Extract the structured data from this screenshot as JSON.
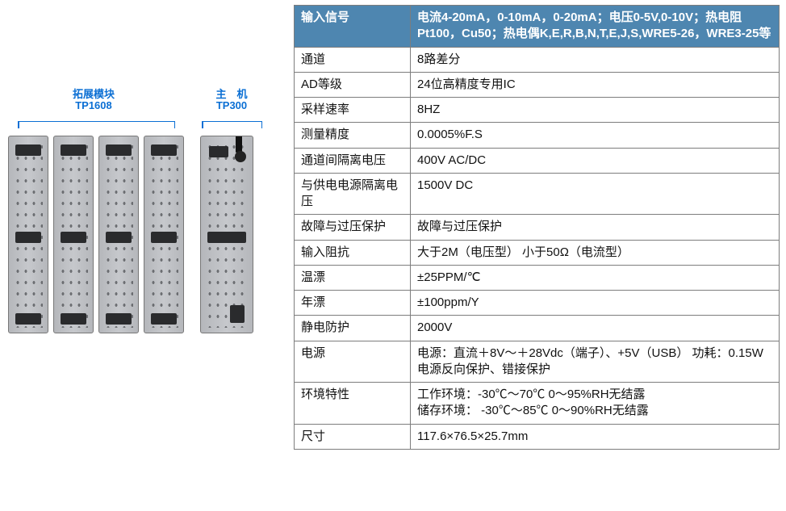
{
  "diagram": {
    "callouts": [
      {
        "top": "拓展模块",
        "bottom": "TP1608"
      },
      {
        "top": "主　机",
        "bottom": "TP300"
      }
    ],
    "accent_color": "#0b6fd4"
  },
  "spec_table": {
    "header_bg": "#4e86b0",
    "header_fg": "#ffffff",
    "border_color": "#7d7d7d",
    "header_row": {
      "key": "输入信号",
      "value": "电流4-20mA，0-10mA，0-20mA；电压0-5V,0-10V；热电阻Pt100，Cu50；热电偶K,E,R,B,N,T,E,J,S,WRE5-26，WRE3-25等"
    },
    "rows": [
      {
        "k": "通道",
        "v": " 8路差分"
      },
      {
        "k": "AD等级",
        "v": "24位高精度专用IC"
      },
      {
        "k": "采样速率",
        "v": "8HZ"
      },
      {
        "k": "测量精度",
        "v": "0.0005%F.S"
      },
      {
        "k": "通道间隔离电压",
        "v": "400V AC/DC"
      },
      {
        "k": "与供电电源隔离电压",
        "v": "1500V DC"
      },
      {
        "k": "故障与过压保护",
        "v": "故障与过压保护"
      },
      {
        "k": "输入阻抗",
        "v": "大于2M（电压型） 小于50Ω（电流型）"
      },
      {
        "k": "温漂",
        "v": "±25PPM/℃"
      },
      {
        "k": "年漂",
        "v": "±100ppm/Y"
      },
      {
        "k": "静电防护",
        "v": "2000V"
      },
      {
        "k": "电源",
        "v": "电源：直流＋8V～＋28Vdc（端子）、+5V（USB） 功耗：0.15W 电源反向保护、错接保护"
      },
      {
        "k": "环境特性",
        "v": "工作环境：-30℃～70℃ 0～95%RH无结露\n储存环境： -30℃～85℃ 0～90%RH无结露"
      },
      {
        "k": "尺寸",
        "v": "117.6×76.5×25.7mm"
      }
    ]
  }
}
